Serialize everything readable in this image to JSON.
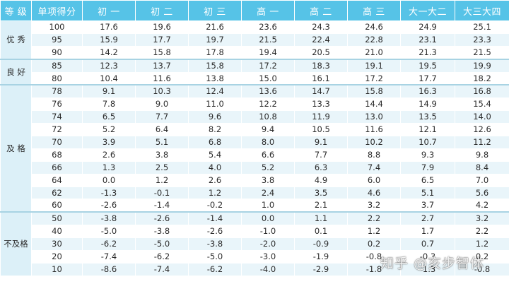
{
  "headers": [
    "等 级",
    "单项得分",
    "初 一",
    "初 二",
    "初 三",
    "高 一",
    "高 二",
    "高 三",
    "大一大二",
    "大三大四"
  ],
  "groups": [
    {
      "grade": "优 秀",
      "rows": [
        [
          "100",
          "17.6",
          "19.6",
          "21.6",
          "23.6",
          "24.3",
          "24.6",
          "24.9",
          "25.1"
        ],
        [
          "95",
          "15.9",
          "17.7",
          "19.7",
          "21.5",
          "22.4",
          "22.8",
          "23.1",
          "23.3"
        ],
        [
          "90",
          "14.2",
          "15.8",
          "17.8",
          "19.4",
          "20.5",
          "21.0",
          "21.3",
          "21.5"
        ]
      ]
    },
    {
      "grade": "良 好",
      "rows": [
        [
          "85",
          "12.3",
          "13.7",
          "15.8",
          "17.2",
          "18.3",
          "19.1",
          "19.5",
          "19.9"
        ],
        [
          "80",
          "10.4",
          "11.6",
          "13.8",
          "15.0",
          "16.1",
          "17.2",
          "17.7",
          "18.2"
        ]
      ]
    },
    {
      "grade": "及 格",
      "rows": [
        [
          "78",
          "9.1",
          "10.3",
          "12.4",
          "13.6",
          "14.7",
          "15.8",
          "16.3",
          "16.8"
        ],
        [
          "76",
          "7.8",
          "9.0",
          "11.0",
          "12.2",
          "13.3",
          "14.4",
          "14.9",
          "15.4"
        ],
        [
          "74",
          "6.5",
          "7.7",
          "9.6",
          "10.8",
          "11.9",
          "13.0",
          "13.5",
          "14.0"
        ],
        [
          "72",
          "5.2",
          "6.4",
          "8.2",
          "9.4",
          "10.5",
          "11.6",
          "12.1",
          "12.6"
        ],
        [
          "70",
          "3.9",
          "5.1",
          "6.8",
          "8.0",
          "9.1",
          "10.2",
          "10.7",
          "11.2"
        ],
        [
          "68",
          "2.6",
          "3.8",
          "5.4",
          "6.6",
          "7.7",
          "8.8",
          "9.3",
          "9.8"
        ],
        [
          "66",
          "1.3",
          "2.5",
          "4.0",
          "5.2",
          "6.3",
          "7.4",
          "7.9",
          "8.4"
        ],
        [
          "64",
          "0.0",
          "1.2",
          "2.6",
          "3.8",
          "4.9",
          "6.0",
          "6.5",
          "7.0"
        ],
        [
          "62",
          "-1.3",
          "-0.1",
          "1.2",
          "2.4",
          "3.5",
          "4.6",
          "5.1",
          "5.6"
        ],
        [
          "60",
          "-2.6",
          "-1.4",
          "-0.2",
          "1.0",
          "2.1",
          "3.2",
          "3.7",
          "4.2"
        ]
      ]
    },
    {
      "grade": "不及格",
      "rows": [
        [
          "50",
          "-3.8",
          "-2.6",
          "-1.4",
          "0.0",
          "1.1",
          "2.2",
          "2.7",
          "3.2"
        ],
        [
          "40",
          "-5.0",
          "-3.8",
          "-2.6",
          "-1.0",
          "0.1",
          "1.2",
          "1.7",
          "2.2"
        ],
        [
          "30",
          "-6.2",
          "-5.0",
          "-3.8",
          "-2.0",
          "-0.9",
          "0.2",
          "0.7",
          "1.2"
        ],
        [
          "20",
          "-7.4",
          "-6.2",
          "-5.0",
          "-3.0",
          "-1.9",
          "-0.8",
          "-0.3",
          "0.2"
        ],
        [
          "10",
          "-8.6",
          "-7.4",
          "-6.2",
          "-4.0",
          "-2.9",
          "-1.8",
          "-1.3",
          "-0.8"
        ]
      ]
    }
  ],
  "watermark": "知乎 @亥步智体"
}
